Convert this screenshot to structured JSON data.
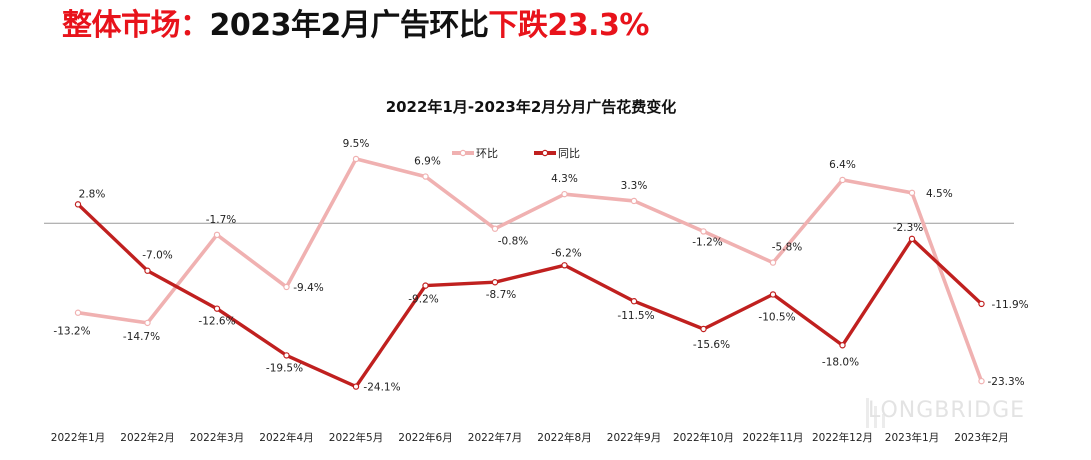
{
  "headline": {
    "part1": "整体市场：",
    "part2": "2023年2月广告环比",
    "part3": "下跌23.3%",
    "red_color": "#e8131b",
    "black_color": "#111111"
  },
  "watermark": "LONGBRIDGE",
  "chart_data": {
    "type": "line",
    "title": "2022年1月-2023年2月分月广告花费变化",
    "categories": [
      "2022年1月",
      "2022年2月",
      "2022年3月",
      "2022年4月",
      "2022年5月",
      "2022年6月",
      "2022年7月",
      "2022年8月",
      "2022年9月",
      "2022年10月",
      "2022年11月",
      "2022年12月",
      "2023年1月",
      "2023年2月"
    ],
    "series": [
      {
        "name": "环比",
        "color": "#f0b1b1",
        "values": [
          -13.2,
          -14.7,
          -1.7,
          -9.4,
          9.5,
          6.9,
          -0.8,
          4.3,
          3.3,
          -1.2,
          -5.8,
          6.4,
          4.5,
          -23.3
        ],
        "labels": [
          "-13.2%",
          "-14.7%",
          "-1.7%",
          "-9.4%",
          "9.5%",
          "6.9%",
          "-0.8%",
          "4.3%",
          "3.3%",
          "-1.2%",
          "-5.8%",
          "6.4%",
          "4.5%",
          "-23.3%"
        ]
      },
      {
        "name": "同比",
        "color": "#c0201f",
        "values": [
          2.8,
          -7.0,
          -12.6,
          -19.5,
          -24.1,
          -9.2,
          -8.7,
          -6.2,
          -11.5,
          -15.6,
          -10.5,
          -18.0,
          -2.3,
          -11.9
        ],
        "labels": [
          "2.8%",
          "-7.0%",
          "-12.6%",
          "-19.5%",
          "-24.1%",
          "-9.2%",
          "-8.7%",
          "-6.2%",
          "-11.5%",
          "-15.6%",
          "-10.5%",
          "-18.0%",
          "-2.3%",
          "-11.9%"
        ]
      }
    ],
    "ylim": [
      -28,
      12
    ],
    "zero_line": true,
    "grid": false,
    "legend_position": "top-center"
  }
}
